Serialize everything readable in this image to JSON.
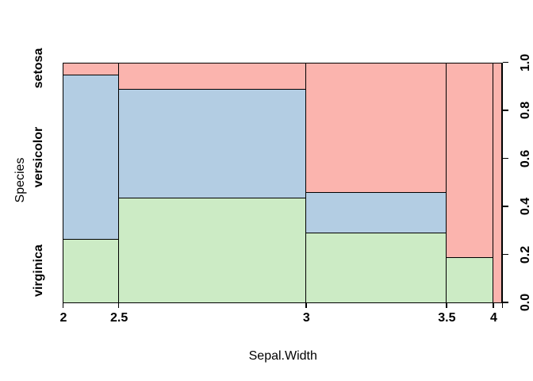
{
  "figure": {
    "background": "#ffffff",
    "text_color": "#000000"
  },
  "chart_data": {
    "type": "mosaic",
    "title": "",
    "xlabel": "Sepal.Width",
    "ylabel": "Species",
    "row_categories": [
      "setosa",
      "versicolor",
      "virginica"
    ],
    "x_bins": [
      "2-2.5",
      "2.5-3",
      "3-3.5",
      "3.5-4",
      "4-4.5"
    ],
    "x_break_labels": [
      "2",
      "2.5",
      "3",
      "3.5",
      "4",
      ""
    ],
    "series": [
      {
        "name": "setosa",
        "color": "#FBB4AE",
        "counts": [
          1,
          7,
          26,
          13,
          3
        ]
      },
      {
        "name": "versicolor",
        "color": "#B3CDE3",
        "counts": [
          13,
          29,
          8,
          0,
          0
        ]
      },
      {
        "name": "virginica",
        "color": "#CCEBC5",
        "counts": [
          5,
          28,
          14,
          3,
          0
        ]
      }
    ],
    "column_totals": [
      19,
      64,
      48,
      16,
      3
    ],
    "grand_total": 150,
    "right_axis_ticks": [
      "0.0",
      "0.2",
      "0.4",
      "0.6",
      "0.8",
      "1.0"
    ],
    "right_axis_range": [
      0,
      1
    ],
    "border_color": "#000000",
    "legend": "none",
    "grid": "off"
  }
}
